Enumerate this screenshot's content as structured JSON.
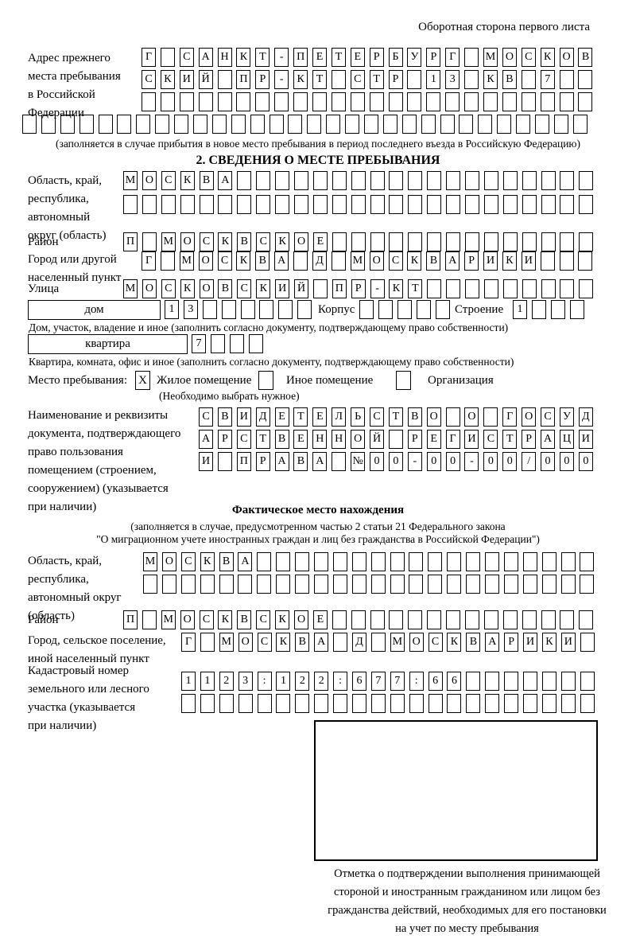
{
  "page": {
    "header_note": "Оборотная сторона первого листа",
    "ink_color": "#000000",
    "paper_color": "#ffffff"
  },
  "prev_address": {
    "label_lines": [
      "Адрес прежнего",
      "места пребывания",
      "в Российской",
      "Федерации"
    ],
    "rows": [
      {
        "t": "Г САНКТ-ПЕТЕРБУРГ МОСКОВ",
        "n": 24
      },
      {
        "t": "СКИЙ ПР-КТ СТР 13 КВ 7",
        "n": 24
      },
      {
        "t": "",
        "n": 24
      },
      {
        "t": "",
        "n": 30
      }
    ],
    "note": "(заполняется в случае прибытия в новое место пребывания в период последнего въезда в Российскую Федерацию)"
  },
  "section2": {
    "title": "2. СВЕДЕНИЯ О МЕСТЕ ПРЕБЫВАНИЯ",
    "region": {
      "label_lines": [
        "Область, край,",
        "республика,",
        "автономный",
        "округ (область)"
      ],
      "rows": [
        {
          "t": "МОСКВА",
          "n": 25
        },
        {
          "t": "",
          "n": 25
        }
      ]
    },
    "district": {
      "label": "Район",
      "row": {
        "t": "П МОСКВСКОЕ",
        "n": 25
      }
    },
    "city": {
      "label_lines": [
        "Город или другой",
        "населенный пункт"
      ],
      "row": {
        "t": "Г МОСКВА Д МОСКВАРИКИ",
        "n": 24
      }
    },
    "street": {
      "label": "Улица",
      "row": {
        "t": "МОСКОВСКИЙ ПР-КТ",
        "n": 25
      }
    },
    "house": {
      "box_label": "дом",
      "cells": {
        "t": "13",
        "n": 8
      },
      "korpus_label": "Корпус",
      "korpus_cells": {
        "t": "",
        "n": 5
      },
      "stroenie_label": "Строение",
      "stroenie_cells": {
        "t": "1",
        "n": 4
      },
      "note": "Дом, участок, владение и иное (заполнить согласно документу, подтверждающему право собственности)"
    },
    "apartment": {
      "box_label": "квартира",
      "cells": {
        "t": "7",
        "n": 4
      },
      "note": "Квартира, комната, офис и иное (заполнить согласно документу, подтверждающему право собственности)"
    },
    "stay_type": {
      "label": "Место пребывания:",
      "options": [
        {
          "label": "Жилое помещение",
          "checked": "X"
        },
        {
          "label": "Иное помещение",
          "checked": ""
        },
        {
          "label": "Организация",
          "checked": ""
        }
      ],
      "note": "(Необходимо выбрать нужное)"
    },
    "document": {
      "label_lines": [
        "Наименование и реквизиты",
        "документа, подтверждающего",
        "право пользования",
        "помещением (строением,",
        "сооружением) (указывается",
        "при наличии)"
      ],
      "rows": [
        {
          "t": "СВИДЕТЕЛЬСТВО О ГОСУД",
          "n": 21
        },
        {
          "t": "АРСТВЕННОЙ РЕГИСТРАЦИ",
          "n": 21
        },
        {
          "t": "И ПРАВА №00-00-00/000",
          "n": 21
        }
      ]
    }
  },
  "actual_location": {
    "title": "Фактическое место нахождения",
    "note_lines": [
      "(заполняется в случае, предусмотренном частью 2 статьи 21 Федерального закона",
      "\"О миграционном учете иностранных граждан и лиц без гражданства в Российской Федерации\")"
    ],
    "region": {
      "label_lines": [
        "Область, край,",
        "республика,",
        "автономный округ",
        "(область)"
      ],
      "rows": [
        {
          "t": "МОСКВА",
          "n": 24
        },
        {
          "t": "",
          "n": 24
        }
      ]
    },
    "district": {
      "label": "Район",
      "row": {
        "t": "П МОСКВСКОЕ",
        "n": 25
      }
    },
    "city": {
      "label_lines": [
        "Город, сельское поселение,",
        "иной населенный пункт"
      ],
      "row": {
        "t": "Г МОСКВА Д МОСКВАРИКИ",
        "n": 22
      }
    },
    "cadastral": {
      "label_lines": [
        "Кадастровый номер",
        "земельного или лесного",
        "участка (указывается",
        "при наличии)"
      ],
      "rows": [
        {
          "t": "1123:122:677:66",
          "n": 22
        },
        {
          "t": "",
          "n": 22
        }
      ]
    },
    "stamp_caption_lines": [
      "Отметка о подтверждении выполнения принимающей",
      "стороной и иностранным гражданином или лицом без",
      "гражданства действий, необходимых для его постановки",
      "на учет по месту пребывания"
    ]
  }
}
